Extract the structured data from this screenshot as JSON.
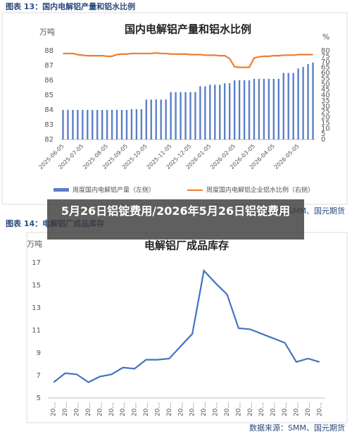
{
  "banner": "5月26日铝锭费用/2026年5月26日铝锭费用",
  "chart_data": [
    {
      "type": "combo",
      "caption": "图表 13：国内电解铝产量和铝水比例",
      "title": "国内电解铝产量和铝水比例",
      "y_label": "万吨",
      "y2_label": "%",
      "categories": [
        "2025-06-05",
        null,
        null,
        null,
        "2025-07-05",
        null,
        null,
        null,
        null,
        "2025-08-05",
        null,
        null,
        null,
        "2025-09-05",
        null,
        null,
        null,
        "2025-10-05",
        null,
        null,
        null,
        null,
        "2025-11-05",
        null,
        null,
        null,
        "2025-12-05",
        null,
        null,
        null,
        "2026-01-05",
        null,
        null,
        null,
        null,
        "2026-02-05",
        null,
        null,
        null,
        "2026-03-05",
        null,
        null,
        null,
        "2026-04-05",
        null,
        null,
        null,
        null,
        "2026-05-05",
        null,
        null,
        null
      ],
      "series": [
        {
          "name": "周度国内电解铝产量（左侧）",
          "type": "bar",
          "color": "#5b7fc7",
          "values": [
            84.0,
            84.0,
            84.0,
            84.0,
            84.0,
            84.0,
            84.0,
            84.0,
            84.0,
            84.0,
            84.0,
            84.0,
            84.0,
            84.0,
            84.05,
            84.05,
            84.05,
            84.7,
            84.7,
            84.7,
            84.7,
            84.7,
            85.2,
            85.2,
            85.2,
            85.2,
            85.2,
            85.2,
            85.6,
            85.6,
            85.7,
            85.7,
            85.7,
            85.8,
            85.8,
            86.0,
            86.0,
            86.0,
            86.0,
            86.1,
            86.1,
            86.1,
            86.1,
            86.1,
            86.1,
            86.5,
            86.5,
            86.5,
            86.8,
            86.9,
            87.1,
            87.2
          ]
        },
        {
          "name": "周度国内电解铝企业铝水比例（右侧）",
          "type": "line",
          "axis": "y2",
          "color": "#ed7d31",
          "values": [
            77.5,
            77.5,
            77.5,
            76.5,
            76,
            75.5,
            75.5,
            75.5,
            75.5,
            75,
            75,
            76.5,
            77,
            77,
            77.5,
            77.5,
            77.5,
            77.5,
            77.5,
            78,
            77.5,
            77.5,
            77,
            77,
            77,
            77,
            76.5,
            76.5,
            76.5,
            76,
            76,
            76,
            75.5,
            75.5,
            73,
            65.5,
            65,
            65,
            65,
            73.5,
            74.5,
            75,
            75,
            75.5,
            75.5,
            76,
            76,
            76,
            76.5,
            76.5,
            76.5,
            76.5
          ]
        }
      ],
      "ylim": [
        82,
        88
      ],
      "yticks": [
        82,
        83,
        84,
        85,
        86,
        87,
        88
      ],
      "y2lim": [
        0,
        80
      ],
      "y2ticks": [
        0,
        5,
        10,
        15,
        20,
        25,
        30,
        35,
        40,
        45,
        50,
        55,
        60,
        65,
        70,
        75,
        80
      ],
      "source": "数据来源：SMM、国元期货"
    },
    {
      "type": "line",
      "caption": "图表 14：电解铝厂成品库存",
      "title": "电解铝厂成品库存",
      "y_label": "万吨",
      "categories": [
        "20...",
        "20...",
        "20...",
        "20...",
        "20...",
        "20...",
        "20...",
        "20...",
        "20...",
        "20...",
        "20...",
        "20...",
        "20...",
        "20...",
        "20...",
        "20...",
        "20...",
        "20...",
        "20...",
        "20...",
        "20...",
        "20...",
        "20...",
        "20..."
      ],
      "series": [
        {
          "name": "电解铝厂成品库存",
          "color": "#4472c4",
          "values": [
            6.4,
            7.2,
            7.1,
            6.4,
            6.9,
            7.1,
            7.7,
            7.6,
            8.4,
            8.4,
            8.5,
            9.6,
            10.7,
            16.3,
            15.2,
            14.2,
            11.2,
            11.1,
            10.7,
            10.3,
            9.9,
            8.2,
            8.5,
            8.2
          ]
        }
      ],
      "ylim": [
        5,
        17
      ],
      "yticks": [
        5,
        7,
        9,
        11,
        13,
        15,
        17
      ],
      "source": "数据来源：SMM、国元期货"
    }
  ]
}
